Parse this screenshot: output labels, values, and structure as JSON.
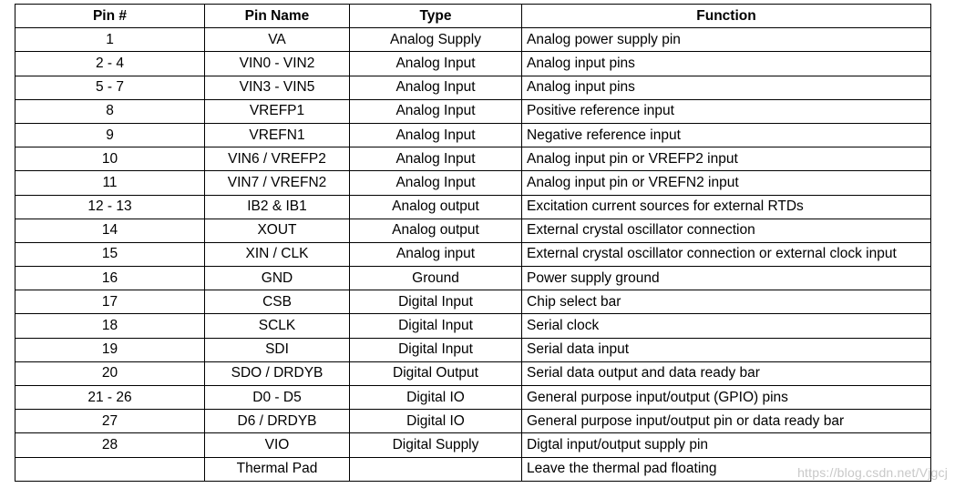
{
  "table": {
    "headers": [
      "Pin #",
      "Pin Name",
      "Type",
      "Function"
    ],
    "rows": [
      [
        "1",
        "VA",
        "Analog Supply",
        "Analog power supply pin"
      ],
      [
        "2 - 4",
        "VIN0 - VIN2",
        "Analog Input",
        "Analog input pins"
      ],
      [
        "5 - 7",
        "VIN3 - VIN5",
        "Analog Input",
        "Analog input pins"
      ],
      [
        "8",
        "VREFP1",
        "Analog Input",
        "Positive reference input"
      ],
      [
        "9",
        "VREFN1",
        "Analog Input",
        "Negative reference input"
      ],
      [
        "10",
        "VIN6 / VREFP2",
        "Analog Input",
        "Analog input pin or VREFP2 input"
      ],
      [
        "11",
        "VIN7 / VREFN2",
        "Analog Input",
        "Analog input pin or VREFN2 input"
      ],
      [
        "12 - 13",
        "IB2 & IB1",
        "Analog output",
        "Excitation current sources for external RTDs"
      ],
      [
        "14",
        "XOUT",
        "Analog output",
        "External crystal oscillator connection"
      ],
      [
        "15",
        "XIN / CLK",
        "Analog input",
        "External crystal oscillator connection or external clock input"
      ],
      [
        "16",
        "GND",
        "Ground",
        "Power supply ground"
      ],
      [
        "17",
        "CSB",
        "Digital Input",
        "Chip select bar"
      ],
      [
        "18",
        "SCLK",
        "Digital Input",
        "Serial clock"
      ],
      [
        "19",
        "SDI",
        "Digital Input",
        "Serial data input"
      ],
      [
        "20",
        "SDO / DRDYB",
        "Digital Output",
        "Serial data output and data ready bar"
      ],
      [
        "21 - 26",
        "D0 - D5",
        "Digital IO",
        "General purpose input/output (GPIO) pins"
      ],
      [
        "27",
        "D6 / DRDYB",
        "Digital IO",
        "General purpose input/output pin or data ready bar"
      ],
      [
        "28",
        "VIO",
        "Digital Supply",
        "Digtal input/output supply pin"
      ],
      [
        "",
        "Thermal Pad",
        "",
        "Leave the thermal pad floating"
      ]
    ]
  },
  "watermark": "https://blog.csdn.net/Vjgcj"
}
